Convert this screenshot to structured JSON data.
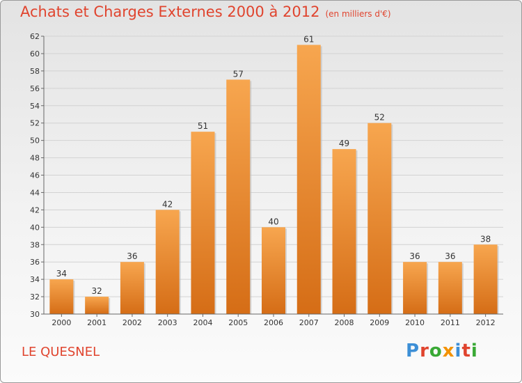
{
  "chart_data": {
    "type": "bar",
    "title": "Achats et Charges Externes 2000 à 2012",
    "unit": "(en milliers d'€)",
    "categories": [
      "2000",
      "2001",
      "2002",
      "2003",
      "2004",
      "2005",
      "2006",
      "2007",
      "2008",
      "2009",
      "2010",
      "2011",
      "2012"
    ],
    "values": [
      34,
      32,
      36,
      42,
      51,
      57,
      40,
      61,
      49,
      52,
      36,
      36,
      38
    ],
    "ylim": [
      30,
      62
    ],
    "yticks": [
      30,
      32,
      34,
      36,
      38,
      40,
      42,
      44,
      46,
      48,
      50,
      52,
      54,
      56,
      58,
      60,
      62
    ],
    "grid": true,
    "bar_color": "#f08a30"
  },
  "footer": {
    "commune": "LE QUESNEL",
    "logo_text": "Proxiti"
  },
  "colors": {
    "title": "#e0442e",
    "logo_letters": [
      "#3d8fd6",
      "#e0442e",
      "#39a935",
      "#f39200",
      "#3d8fd6",
      "#e0442e",
      "#39a935"
    ]
  }
}
